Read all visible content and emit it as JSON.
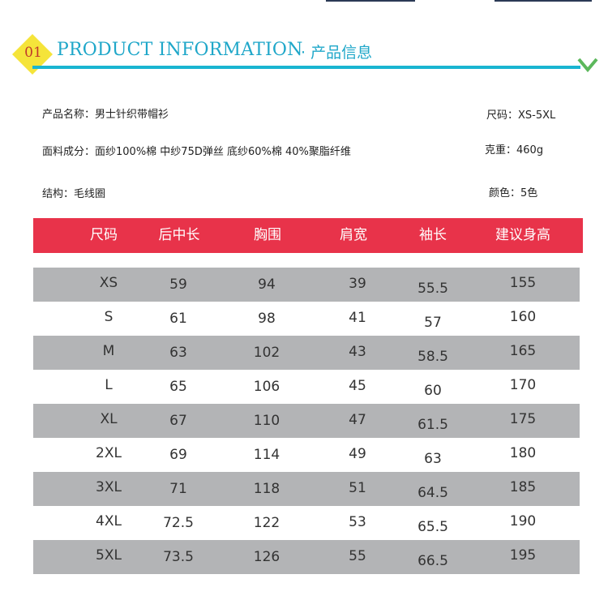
{
  "header": {
    "number": "01",
    "title_en": "PRODUCT INFORMATION",
    "title_cn": "· 产品信息",
    "badge_color": "#f5e43a",
    "accent_color": "#19b5d1",
    "chevron_color": "#5cb85c"
  },
  "info": {
    "name": "产品名称：男士针织带帽衫",
    "size": "尺码：XS-5XL",
    "fabric": "面料成分：面纱100%棉 中纱75D弹丝 底纱60%棉 40%聚脂纤维",
    "weight": "克重：460g",
    "structure": "结构：毛线圈",
    "color": "颜色：5色"
  },
  "table": {
    "header_color": "#e8334a",
    "row_shade": "#b3b4b6",
    "columns": [
      "尺码",
      "后中长",
      "胸围",
      "肩宽",
      "袖长",
      "建议身高"
    ],
    "rows": [
      [
        "XS",
        "59",
        "94",
        "39",
        "55.5",
        "155"
      ],
      [
        "S",
        "61",
        "98",
        "41",
        "57",
        "160"
      ],
      [
        "M",
        "63",
        "102",
        "43",
        "58.5",
        "165"
      ],
      [
        "L",
        "65",
        "106",
        "45",
        "60",
        "170"
      ],
      [
        "XL",
        "67",
        "110",
        "47",
        "61.5",
        "175"
      ],
      [
        "2XL",
        "69",
        "114",
        "49",
        "63",
        "180"
      ],
      [
        "3XL",
        "71",
        "118",
        "51",
        "64.5",
        "185"
      ],
      [
        "4XL",
        "72.5",
        "122",
        "53",
        "65.5",
        "190"
      ],
      [
        "5XL",
        "73.5",
        "126",
        "55",
        "66.5",
        "195"
      ]
    ]
  }
}
